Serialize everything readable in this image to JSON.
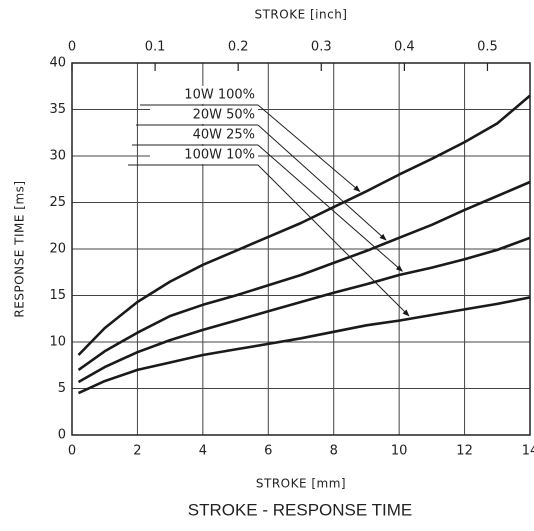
{
  "chart_data": {
    "type": "line",
    "title": "STROKE - RESPONSE TIME",
    "x_label": "STROKE [mm]",
    "x2_label": "STROKE [inch]",
    "y_label": "RESPONSE TIME [ms]",
    "x": [
      0.2,
      1,
      2,
      3,
      4,
      5,
      6,
      7,
      8,
      9,
      10,
      11,
      12,
      13,
      14
    ],
    "series": [
      {
        "name": "10W 100%",
        "color": "#1a1a1a",
        "values": [
          8.6,
          11.5,
          14.3,
          16.5,
          18.3,
          19.8,
          21.3,
          22.8,
          24.5,
          26.2,
          28,
          29.7,
          31.5,
          33.5,
          36.5
        ]
      },
      {
        "name": "20W 50%",
        "color": "#1a1a1a",
        "values": [
          7,
          9,
          11,
          12.8,
          14,
          15,
          16.1,
          17.2,
          18.5,
          19.8,
          21.2,
          22.6,
          24.2,
          25.7,
          27.2
        ]
      },
      {
        "name": "40W 25%",
        "color": "#1a1a1a",
        "values": [
          5.7,
          7.3,
          8.9,
          10.2,
          11.3,
          12.3,
          13.3,
          14.3,
          15.3,
          16.2,
          17.2,
          18,
          18.9,
          19.9,
          21.2
        ]
      },
      {
        "name": "100W 10%",
        "color": "#1a1a1a",
        "values": [
          4.5,
          5.8,
          7,
          7.8,
          8.6,
          9.2,
          9.8,
          10.4,
          11.1,
          11.8,
          12.3,
          12.9,
          13.5,
          14.1,
          14.8
        ]
      }
    ],
    "xlim": [
      0,
      14
    ],
    "xticks": [
      0,
      2,
      4,
      6,
      8,
      10,
      12,
      14
    ],
    "x2lim": [
      0,
      0.5512
    ],
    "x2ticks": [
      0,
      0.1,
      0.2,
      0.3,
      0.4,
      0.5
    ],
    "ylim": [
      0,
      40
    ],
    "yticks": [
      0,
      5,
      10,
      15,
      20,
      25,
      30,
      35,
      40
    ],
    "grid": true
  }
}
